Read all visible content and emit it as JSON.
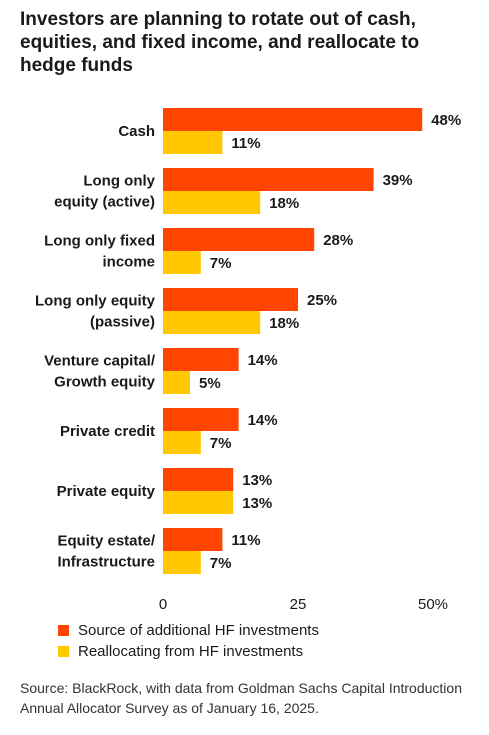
{
  "title": "Investors are planning to rotate out of  cash, equities, and fixed income, and reallocate to hedge funds",
  "source": "Source: BlackRock, with data from Goldman Sachs Capital Introduction Annual Allocator Survey as of January 16, 2025.",
  "colors": {
    "source_series": "#FF4500",
    "reallocating_series": "#FFC800"
  },
  "chart_data": {
    "type": "bar",
    "orientation": "horizontal",
    "categories": [
      [
        "Cash"
      ],
      [
        "Long only",
        "equity (active)"
      ],
      [
        "Long only fixed",
        "income"
      ],
      [
        "Long only equity",
        "(passive)"
      ],
      [
        "Venture capital/",
        "Growth equity"
      ],
      [
        "Private credit"
      ],
      [
        "Private equity"
      ],
      [
        "Equity estate/",
        "Infrastructure"
      ]
    ],
    "series": [
      {
        "name": "Source of additional HF investments",
        "values": [
          48,
          39,
          28,
          25,
          14,
          14,
          13,
          11
        ]
      },
      {
        "name": "Reallocating from HF investments",
        "values": [
          11,
          18,
          7,
          18,
          5,
          7,
          13,
          7
        ]
      }
    ],
    "value_suffix": "%",
    "xlim": [
      0,
      50
    ],
    "xticks": [
      "0",
      "25",
      "50%"
    ],
    "grid": false,
    "legend_position": "bottom-left"
  }
}
